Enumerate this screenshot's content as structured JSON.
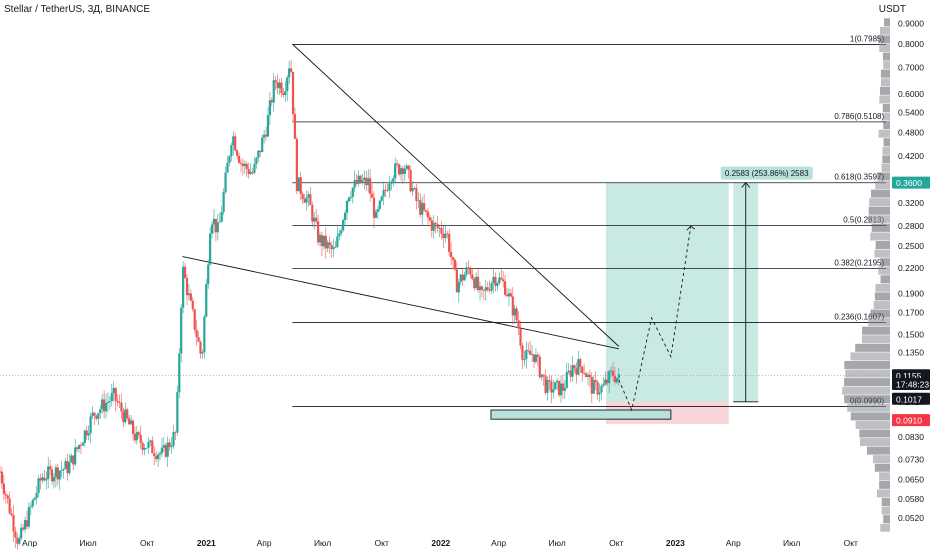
{
  "header": {
    "title": "Stellar / TetherUS, 3Д, BINANCE",
    "currency": "USDT"
  },
  "colors": {
    "up": "#26a69a",
    "down": "#ef5350",
    "target_zone": "#b7e1d9",
    "stop_zone": "#f7c5cb",
    "line": "#131722",
    "badge_green": "#26a69a",
    "badge_red": "#f23645",
    "badge_black": "#131722"
  },
  "chart_data": {
    "type": "candlestick",
    "pair": "XLM/USDT",
    "timeframe": "3Д",
    "y_scale": "log",
    "ylim": [
      0.048,
      0.93
    ],
    "y_ticks": [
      "0.9000",
      "0.8000",
      "0.7000",
      "0.6000",
      "0.5400",
      "0.4800",
      "0.4200",
      "0.3600",
      "0.3200",
      "0.2800",
      "0.2500",
      "0.2200",
      "0.1900",
      "0.1700",
      "0.1500",
      "0.1350",
      "0.1200",
      "0.1017",
      "0.0910",
      "0.0830",
      "0.0730",
      "0.0650",
      "0.0580",
      "0.0520"
    ],
    "x_ticks": [
      "Апр",
      "Июл",
      "Окт",
      "2021",
      "Апр",
      "Июл",
      "Окт",
      "2022",
      "Апр",
      "Июл",
      "Окт",
      "2023",
      "Апр",
      "Июл",
      "Окт"
    ],
    "x_range": [
      "2020-02-15",
      "2023-12-01"
    ],
    "price_path": [
      [
        "2020-02-15",
        0.068
      ],
      [
        "2020-03-15",
        0.045
      ],
      [
        "2020-04-20",
        0.066
      ],
      [
        "2020-06-01",
        0.07
      ],
      [
        "2020-07-10",
        0.095
      ],
      [
        "2020-08-10",
        0.105
      ],
      [
        "2020-09-15",
        0.082
      ],
      [
        "2020-10-25",
        0.075
      ],
      [
        "2020-11-15",
        0.085
      ],
      [
        "2020-11-25",
        0.22
      ],
      [
        "2020-12-10",
        0.17
      ],
      [
        "2020-12-25",
        0.13
      ],
      [
        "2021-01-08",
        0.3
      ],
      [
        "2021-01-20",
        0.27
      ],
      [
        "2021-02-10",
        0.48
      ],
      [
        "2021-02-25",
        0.4
      ],
      [
        "2021-03-15",
        0.38
      ],
      [
        "2021-04-05",
        0.5
      ],
      [
        "2021-04-18",
        0.65
      ],
      [
        "2021-05-02",
        0.62
      ],
      [
        "2021-05-12",
        0.74
      ],
      [
        "2021-05-22",
        0.36
      ],
      [
        "2021-06-10",
        0.32
      ],
      [
        "2021-06-25",
        0.26
      ],
      [
        "2021-07-20",
        0.24
      ],
      [
        "2021-08-10",
        0.34
      ],
      [
        "2021-08-25",
        0.36
      ],
      [
        "2021-09-10",
        0.36
      ],
      [
        "2021-09-22",
        0.29
      ],
      [
        "2021-10-15",
        0.38
      ],
      [
        "2021-11-05",
        0.4
      ],
      [
        "2021-11-25",
        0.32
      ],
      [
        "2021-12-20",
        0.28
      ],
      [
        "2022-01-10",
        0.27
      ],
      [
        "2022-01-25",
        0.2
      ],
      [
        "2022-02-15",
        0.22
      ],
      [
        "2022-03-05",
        0.185
      ],
      [
        "2022-03-25",
        0.21
      ],
      [
        "2022-04-10",
        0.2
      ],
      [
        "2022-05-01",
        0.16
      ],
      [
        "2022-05-10",
        0.13
      ],
      [
        "2022-05-25",
        0.135
      ],
      [
        "2022-06-15",
        0.11
      ],
      [
        "2022-07-10",
        0.11
      ],
      [
        "2022-07-25",
        0.125
      ],
      [
        "2022-08-10",
        0.125
      ],
      [
        "2022-08-25",
        0.11
      ],
      [
        "2022-09-10",
        0.11
      ],
      [
        "2022-09-25",
        0.12
      ],
      [
        "2022-10-05",
        0.1155
      ]
    ],
    "fibonacci": [
      {
        "label": "1(0.7985)",
        "value": 0.7985
      },
      {
        "label": "0.786(0.5108)",
        "value": 0.5108
      },
      {
        "label": "0.618(0.3597)",
        "value": 0.3597
      },
      {
        "label": "0.5(0.2813)",
        "value": 0.2813
      },
      {
        "label": "0.382(0.2195)",
        "value": 0.2195
      },
      {
        "label": "0.236(0.1607)",
        "value": 0.1607
      },
      {
        "label": "0(0.0990)",
        "value": 0.099
      }
    ],
    "fib_range": [
      "2021-05-15",
      "2023-11-25"
    ],
    "trendlines": [
      {
        "from": [
          "2021-05-15",
          0.8
        ],
        "to": [
          "2022-10-05",
          0.14
        ]
      },
      {
        "from": [
          "2020-11-25",
          0.235
        ],
        "to": [
          "2022-10-05",
          0.138
        ]
      }
    ],
    "long_position": {
      "start": "2022-09-15",
      "end": "2023-03-25",
      "target": 0.36,
      "entry": 0.1017,
      "stop": 0.0895
    },
    "measure": {
      "label": "0.2583 (253.86%) 2583",
      "start": "2023-04-01",
      "end": "2023-05-10",
      "from": 0.1017,
      "to": 0.36
    },
    "support_box": {
      "start": "2022-03-20",
      "end": "2022-12-25",
      "top": 0.097,
      "bottom": 0.092
    },
    "projection": [
      [
        "2022-10-05",
        0.1155
      ],
      [
        "2022-10-25",
        0.097
      ],
      [
        "2022-11-25",
        0.165
      ],
      [
        "2022-12-25",
        0.132
      ],
      [
        "2023-01-25",
        0.28
      ]
    ],
    "projection_arrow_label": "",
    "price_badges": [
      {
        "label": "0.3600",
        "value": 0.36,
        "kind": "green"
      },
      {
        "label": "0.1155",
        "value": 0.1185,
        "kind": "black"
      },
      {
        "label": "17:48:23",
        "value": 0.1127,
        "kind": "black"
      },
      {
        "label": "0.1017",
        "value": 0.1035,
        "kind": "black"
      },
      {
        "label": "0.0910",
        "value": 0.0915,
        "kind": "red"
      }
    ]
  }
}
